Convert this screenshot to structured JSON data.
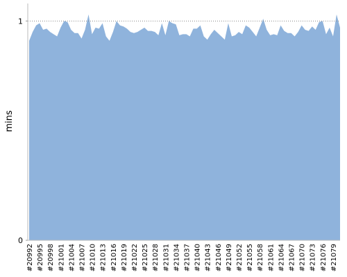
{
  "chart_data": {
    "type": "area",
    "y_label": "mins",
    "categories": [
      "#20992",
      null,
      null,
      "#20995",
      null,
      null,
      "#20998",
      null,
      null,
      "#21001",
      null,
      null,
      "#21004",
      null,
      null,
      "#21007",
      null,
      null,
      "#21010",
      null,
      null,
      "#21013",
      null,
      null,
      "#21016",
      null,
      null,
      "#21019",
      null,
      null,
      "#21022",
      null,
      null,
      "#21025",
      null,
      null,
      "#21028",
      null,
      null,
      "#21031",
      null,
      null,
      "#21034",
      null,
      null,
      "#21037",
      null,
      null,
      "#21040",
      null,
      null,
      "#21043",
      null,
      null,
      "#21046",
      null,
      null,
      "#21049",
      null,
      null,
      "#21052",
      null,
      null,
      "#21055",
      null,
      null,
      "#21058",
      null,
      null,
      "#21061",
      null,
      null,
      "#21064",
      null,
      null,
      "#21067",
      null,
      null,
      "#21070",
      null,
      null,
      "#21073",
      null,
      null,
      "#21076",
      null,
      null,
      "#21079",
      null,
      null
    ],
    "values": [
      0.91,
      0.95,
      0.98,
      0.99,
      0.96,
      0.965,
      0.95,
      0.94,
      0.93,
      0.97,
      1.0,
      0.995,
      0.96,
      0.945,
      0.945,
      0.92,
      0.96,
      1.03,
      0.94,
      0.97,
      0.965,
      0.99,
      0.93,
      0.91,
      0.95,
      1.0,
      0.98,
      0.975,
      0.965,
      0.95,
      0.945,
      0.95,
      0.96,
      0.97,
      0.955,
      0.955,
      0.95,
      0.935,
      0.99,
      0.935,
      1.0,
      0.99,
      0.985,
      0.935,
      0.94,
      0.94,
      0.93,
      0.965,
      0.965,
      0.98,
      0.93,
      0.915,
      0.94,
      0.96,
      0.945,
      0.93,
      0.915,
      0.99,
      0.93,
      0.935,
      0.95,
      0.94,
      0.98,
      0.97,
      0.95,
      0.93,
      0.97,
      1.01,
      0.96,
      0.935,
      0.94,
      0.935,
      0.98,
      0.955,
      0.945,
      0.945,
      0.93,
      0.95,
      0.98,
      0.96,
      0.955,
      0.975,
      0.96,
      0.995,
      1.0,
      0.94,
      0.97,
      0.93,
      1.03,
      0.97
    ],
    "color": "#8fb3dc",
    "ylim": [
      0,
      1.08
    ],
    "yticks": [
      0,
      1
    ],
    "grid": true
  }
}
